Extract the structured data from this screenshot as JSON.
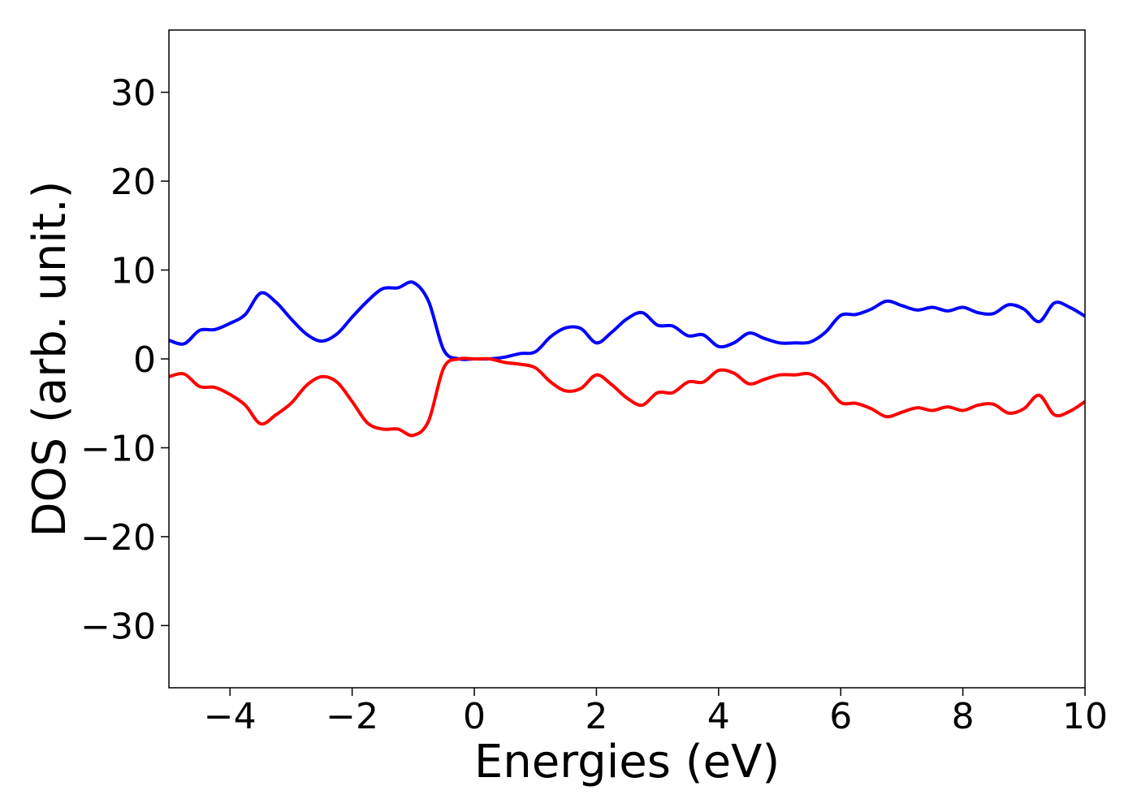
{
  "chart_data": {
    "type": "line",
    "xlabel": "Energies (eV)",
    "ylabel": "DOS (arb. unit.)",
    "x": [
      -5,
      -4.75,
      -4.5,
      -4.25,
      -4,
      -3.75,
      -3.5,
      -3.25,
      -3,
      -2.75,
      -2.5,
      -2.25,
      -2,
      -1.75,
      -1.5,
      -1.25,
      -1,
      -0.75,
      -0.5,
      -0.25,
      0,
      0.25,
      0.5,
      0.75,
      1,
      1.25,
      1.5,
      1.75,
      2,
      2.25,
      2.5,
      2.75,
      3,
      3.25,
      3.5,
      3.75,
      4,
      4.25,
      4.5,
      4.75,
      5,
      5.25,
      5.5,
      5.75,
      6,
      6.25,
      6.5,
      6.75,
      7,
      7.25,
      7.5,
      7.75,
      8,
      8.25,
      8.5,
      8.75,
      9,
      9.25,
      9.5,
      9.75,
      10
    ],
    "series": [
      {
        "color": "#0000ff",
        "values": [
          2.1,
          1.7,
          3.2,
          3.3,
          4.0,
          5.0,
          7.4,
          6.4,
          4.5,
          2.8,
          2.0,
          2.8,
          4.7,
          6.5,
          7.9,
          8.0,
          8.6,
          6.5,
          1.0,
          0,
          0,
          0,
          0.2,
          0.6,
          0.8,
          2.5,
          3.5,
          3.4,
          1.8,
          3.0,
          4.5,
          5.2,
          3.8,
          3.7,
          2.6,
          2.7,
          1.4,
          1.8,
          2.9,
          2.3,
          1.8,
          1.8,
          1.9,
          3.0,
          4.9,
          5.0,
          5.6,
          6.5,
          6.0,
          5.5,
          5.8,
          5.4,
          5.8,
          5.2,
          5.1,
          6.1,
          5.6,
          4.2,
          6.3,
          5.8,
          4.8
        ]
      },
      {
        "color": "#ff0000",
        "values": [
          -2.0,
          -1.7,
          -3.1,
          -3.2,
          -4.0,
          -5.2,
          -7.3,
          -6.3,
          -5.0,
          -3.0,
          -2.0,
          -2.6,
          -4.8,
          -7.2,
          -7.9,
          -7.9,
          -8.6,
          -7.0,
          -1.0,
          0,
          0,
          0,
          -0.4,
          -0.6,
          -1.0,
          -2.6,
          -3.6,
          -3.3,
          -1.8,
          -2.9,
          -4.4,
          -5.2,
          -3.8,
          -3.8,
          -2.6,
          -2.6,
          -1.3,
          -1.6,
          -2.8,
          -2.3,
          -1.8,
          -1.8,
          -1.7,
          -2.9,
          -4.9,
          -5.0,
          -5.6,
          -6.5,
          -6.0,
          -5.5,
          -5.8,
          -5.4,
          -5.8,
          -5.2,
          -5.1,
          -6.1,
          -5.6,
          -4.1,
          -6.3,
          -5.9,
          -4.8
        ]
      }
    ],
    "xlim": [
      -5,
      10
    ],
    "ylim": [
      -37,
      37
    ],
    "xticks": [
      {
        "value": -4,
        "label": "−4"
      },
      {
        "value": -2,
        "label": "−2"
      },
      0,
      2,
      4,
      6,
      8,
      10
    ],
    "yticks": [
      {
        "value": -30,
        "label": "−30"
      },
      {
        "value": -20,
        "label": "−20"
      },
      {
        "value": -10,
        "label": "−10"
      },
      0,
      10,
      20,
      30
    ],
    "grid": false
  }
}
